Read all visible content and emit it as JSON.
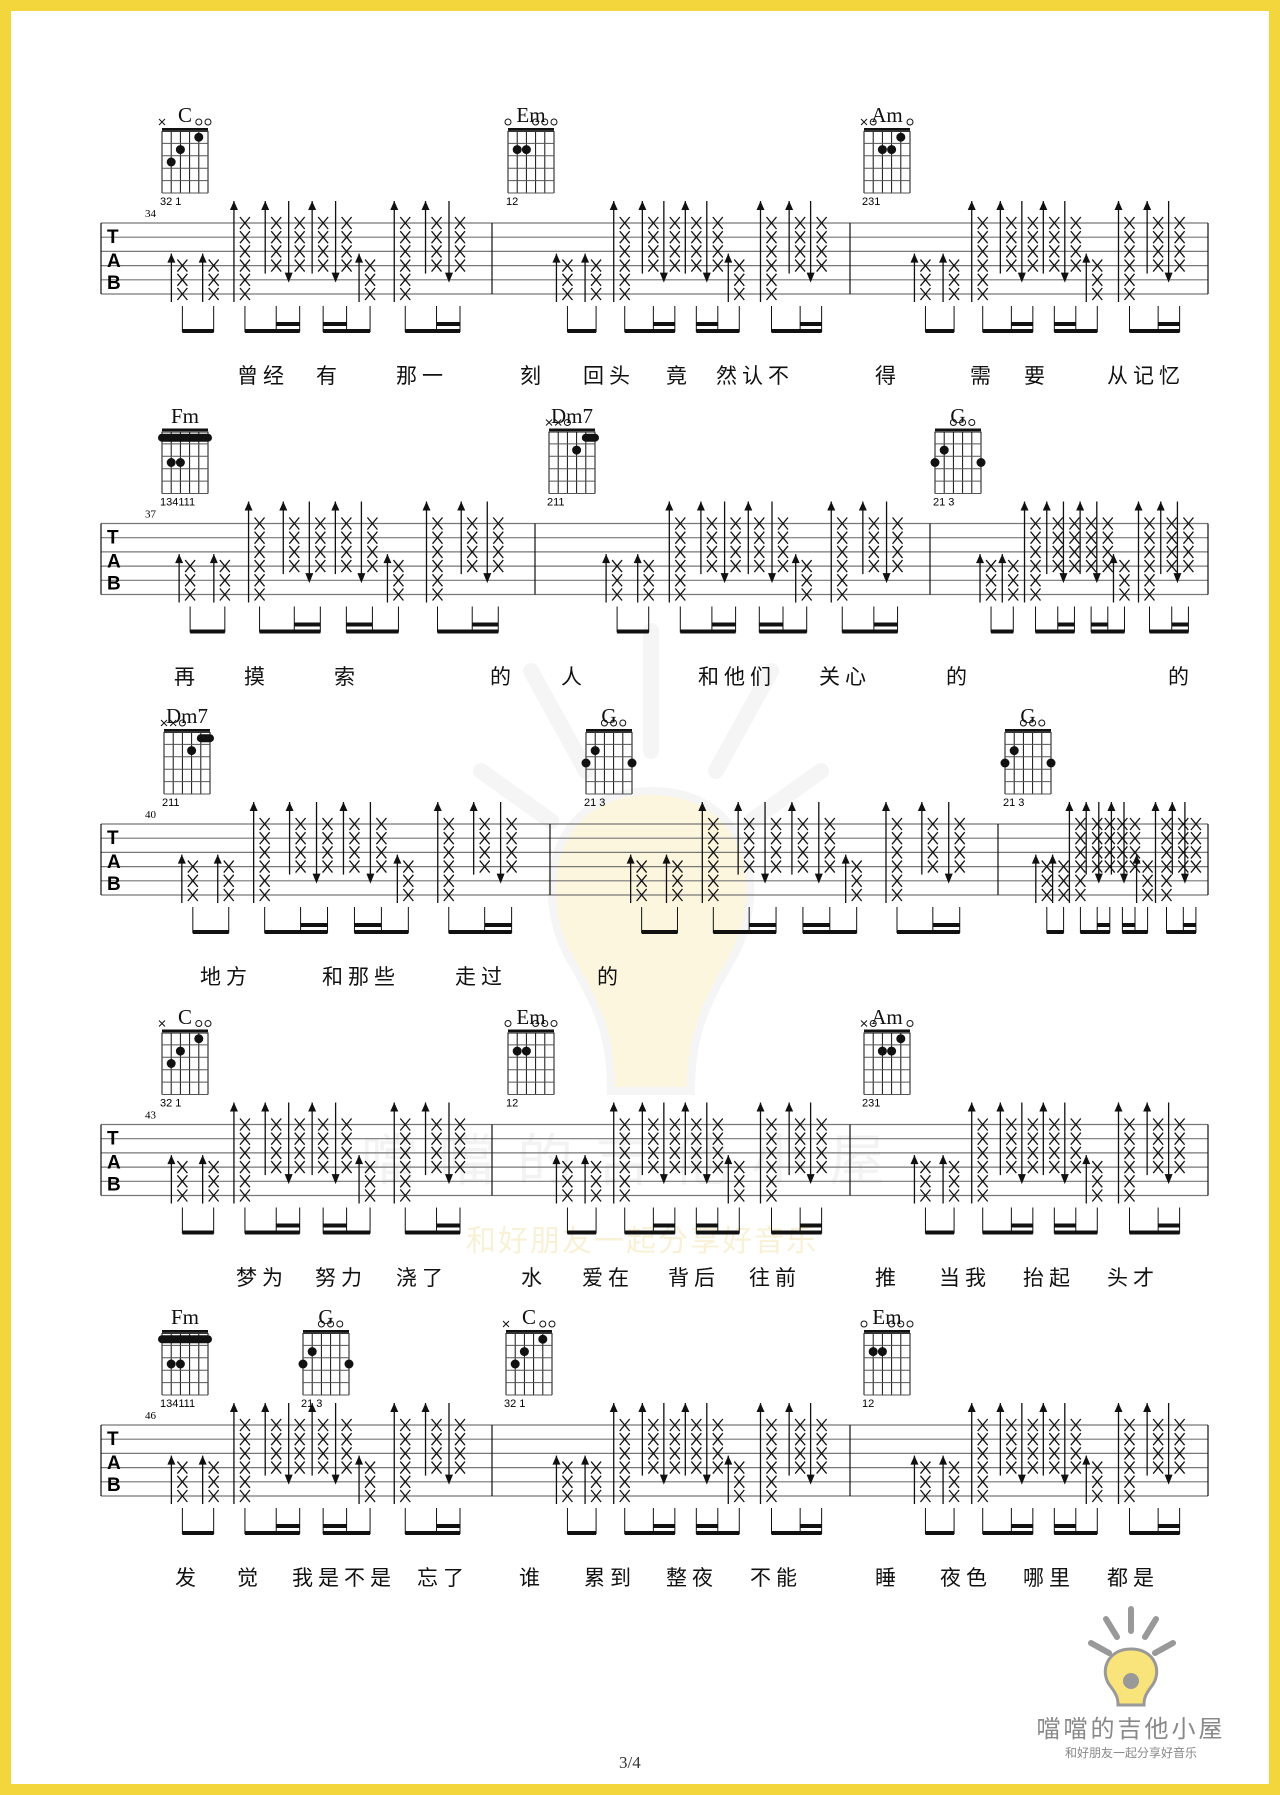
{
  "page_number": "3/4",
  "logo": {
    "title": "噹噹的吉他小屋",
    "subtitle": "和好朋友一起分享好音乐"
  },
  "watermark": {
    "title": "噹噹的吉他小屋",
    "subtitle": "和好朋友一起分享好音乐"
  },
  "colors": {
    "frame": "#f3d63c",
    "ink": "#111111",
    "watermark": "#e8d26a"
  },
  "chords": {
    "C": {
      "name": "C",
      "top": [
        "x",
        "",
        "",
        "",
        "o",
        "o"
      ],
      "dots": [
        [
          5,
          3
        ],
        [
          4,
          2
        ],
        [
          2,
          1
        ]
      ],
      "barre": null,
      "fingers": "32 1"
    },
    "Em": {
      "name": "Em",
      "top": [
        "o",
        "",
        "",
        "o",
        "o",
        "o"
      ],
      "dots": [
        [
          5,
          2
        ],
        [
          4,
          2
        ]
      ],
      "barre": null,
      "fingers": "12"
    },
    "Am": {
      "name": "Am",
      "top": [
        "x",
        "o",
        "",
        "",
        "",
        "o"
      ],
      "dots": [
        [
          4,
          2
        ],
        [
          3,
          2
        ],
        [
          2,
          1
        ]
      ],
      "barre": null,
      "fingers": "231"
    },
    "Fm": {
      "name": "Fm",
      "top": [
        "",
        "",
        "",
        "",
        "",
        ""
      ],
      "dots": [
        [
          5,
          3
        ],
        [
          4,
          3
        ]
      ],
      "barre": [
        6,
        1,
        1
      ],
      "fingers": "134111"
    },
    "Dm7": {
      "name": "Dm7",
      "top": [
        "x",
        "x",
        "o",
        "",
        "",
        ""
      ],
      "dots": [
        [
          3,
          2
        ]
      ],
      "barre": [
        2,
        1,
        1
      ],
      "fingers": "211"
    },
    "G": {
      "name": "G",
      "top": [
        "",
        "",
        "o",
        "o",
        "o",
        ""
      ],
      "dots": [
        [
          5,
          2
        ],
        [
          6,
          3
        ],
        [
          1,
          3
        ]
      ],
      "barre": null,
      "fingers": "21 3"
    }
  },
  "systems": [
    {
      "measure_number": "34",
      "chords": [
        "C",
        "Em",
        "Am"
      ],
      "lyrics": [
        "曾经",
        "有",
        "那一",
        "刻",
        "回头",
        "竟",
        "然认不",
        "得",
        "需",
        "要",
        "从记忆"
      ]
    },
    {
      "measure_number": "37",
      "chords": [
        "Fm",
        "Dm7",
        "G"
      ],
      "lyrics": [
        "再",
        "摸",
        "索",
        "的",
        "人",
        "和他们",
        "关心",
        "的",
        "的"
      ]
    },
    {
      "measure_number": "40",
      "chords": [
        "Dm7",
        "G",
        "G"
      ],
      "lyrics": [
        "地方",
        "和那些",
        "走过",
        "的"
      ]
    },
    {
      "measure_number": "43",
      "chords": [
        "C",
        "Em",
        "Am"
      ],
      "lyrics": [
        "梦为",
        "努力",
        "浇了",
        "水",
        "爱在",
        "背后",
        "往前",
        "推",
        "当我",
        "抬起",
        "头才"
      ]
    },
    {
      "measure_number": "46",
      "chords": [
        "Fm",
        "G",
        "C",
        "Em"
      ],
      "lyrics": [
        "发",
        "觉",
        "我是不是",
        "忘了",
        "谁",
        "累到",
        "整夜",
        "不能",
        "睡",
        "夜色",
        "哪里",
        "都是"
      ]
    }
  ]
}
